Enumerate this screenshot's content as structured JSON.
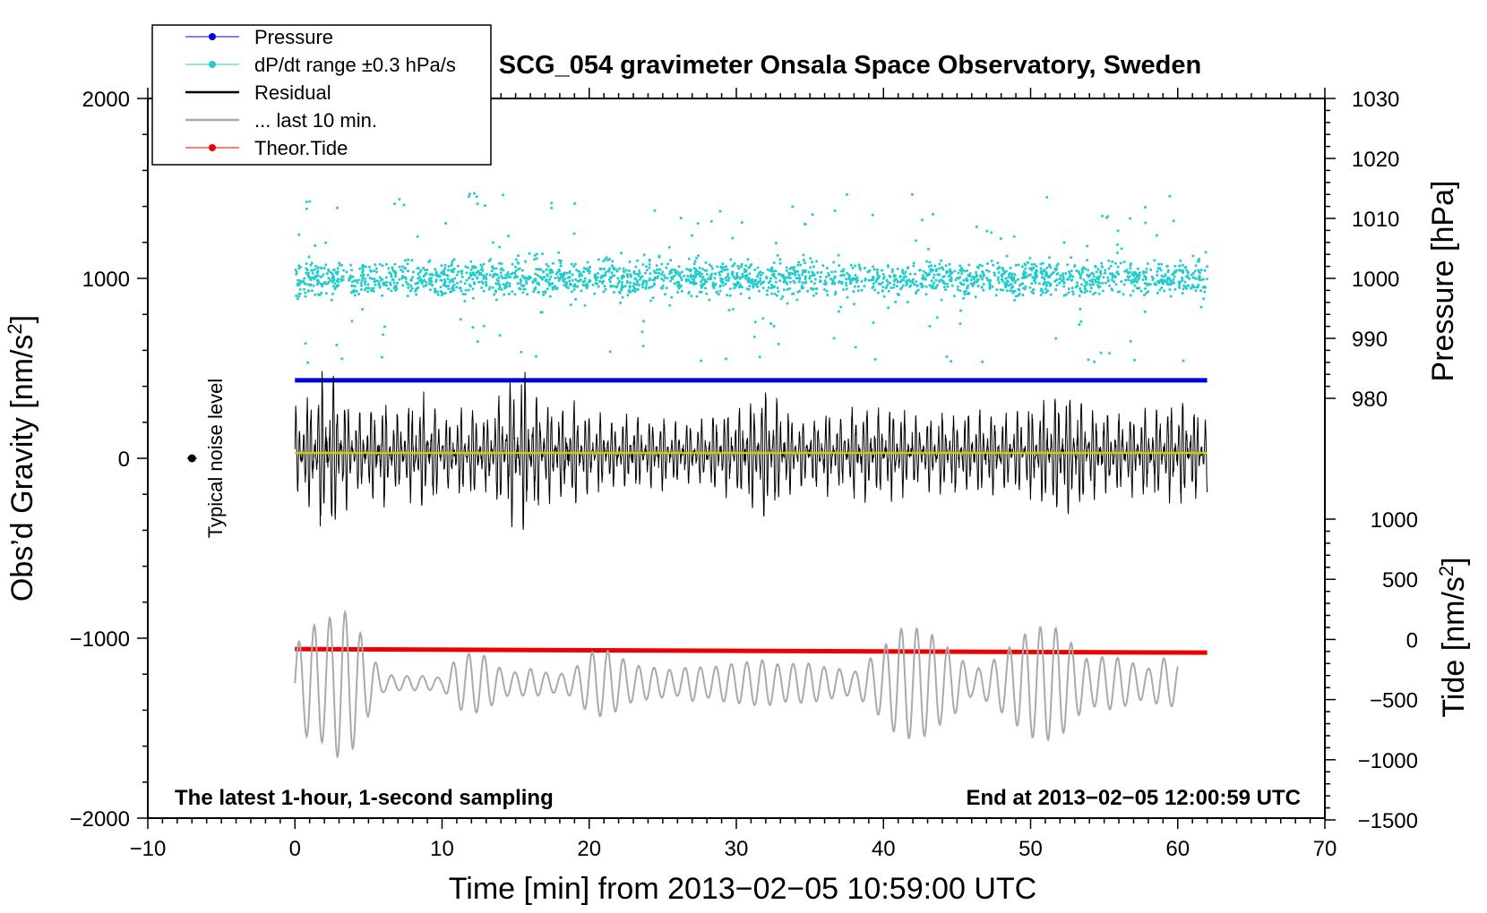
{
  "chart_data": {
    "type": "line",
    "title": "SCG_054 gravimeter Onsala Space Observatory, Sweden",
    "xlabel": "Time [min] from 2013−02−05 10:59:00 UTC",
    "ylabel_left": "Obs’d Gravity [nm/s²]",
    "ylabel_right_top": "Pressure [hPa]",
    "ylabel_right_bottom": "Tide [nm/s²]",
    "xlim": [
      -10,
      70
    ],
    "ylim_left": [
      -2000,
      2000
    ],
    "xticks": [
      "−10",
      "0",
      "10",
      "20",
      "30",
      "40",
      "50",
      "60",
      "70"
    ],
    "yticks_left": [
      "2000",
      "1000",
      "0",
      "−1000",
      "−2000"
    ],
    "yticks_pressure": [
      "1030",
      "1020",
      "1010",
      "1000",
      "990",
      "980"
    ],
    "yticks_tide": [
      "1000",
      "500",
      "0",
      "−500",
      "−1000",
      "−1500"
    ],
    "annotation_left": "The latest 1-hour, 1-second sampling",
    "annotation_right": "End at 2013−02−05 12:00:59 UTC",
    "noise_label": "Typical noise level",
    "noise_marker": {
      "x": -7,
      "y": 0
    },
    "legend": [
      {
        "label": "Pressure",
        "color": "#0000dd",
        "marker": "dot"
      },
      {
        "label": "dP/dt range ±0.3 hPa/s",
        "color": "#22cccc",
        "marker": "dot"
      },
      {
        "label": "Residual",
        "color": "#000000",
        "marker": "line"
      },
      {
        "label": "... last 10 min.",
        "color": "#aaaaaa",
        "marker": "line"
      },
      {
        "label": "Theor.Tide",
        "color": "#ee0000",
        "marker": "dot"
      }
    ],
    "series": [
      {
        "name": "Pressure",
        "color": "#0000dd",
        "axis": "pressure",
        "x": [
          0,
          62
        ],
        "y": [
          983,
          983
        ]
      },
      {
        "name": "dP/dt range ±0.3 hPa/s",
        "color": "#22cccc",
        "axis": "left",
        "x_range": [
          0,
          62
        ],
        "center": 1000,
        "spread": 300
      },
      {
        "name": "Residual",
        "color": "#000000",
        "axis": "left",
        "x_range": [
          0,
          62
        ],
        "center": 30,
        "envelope": [
          [
            0,
            250
          ],
          [
            1,
            300
          ],
          [
            2,
            450
          ],
          [
            2.5,
            480
          ],
          [
            3,
            380
          ],
          [
            4,
            200
          ],
          [
            5,
            240
          ],
          [
            6,
            300
          ],
          [
            7,
            220
          ],
          [
            8,
            280
          ],
          [
            9,
            300
          ],
          [
            10,
            200
          ],
          [
            11,
            220
          ],
          [
            12,
            260
          ],
          [
            13,
            200
          ],
          [
            14,
            330
          ],
          [
            15,
            420
          ],
          [
            15.5,
            470
          ],
          [
            16,
            320
          ],
          [
            17,
            280
          ],
          [
            18,
            250
          ],
          [
            19,
            280
          ],
          [
            20,
            230
          ],
          [
            21,
            200
          ],
          [
            22,
            180
          ],
          [
            23,
            220
          ],
          [
            24,
            170
          ],
          [
            25,
            200
          ],
          [
            26,
            160
          ],
          [
            27,
            170
          ],
          [
            28,
            180
          ],
          [
            29,
            220
          ],
          [
            30,
            250
          ],
          [
            31,
            290
          ],
          [
            32,
            360
          ],
          [
            33,
            280
          ],
          [
            34,
            200
          ],
          [
            35,
            180
          ],
          [
            36,
            230
          ],
          [
            37,
            190
          ],
          [
            38,
            240
          ],
          [
            39,
            260
          ],
          [
            40,
            230
          ],
          [
            41,
            270
          ],
          [
            42,
            200
          ],
          [
            43,
            190
          ],
          [
            44,
            220
          ],
          [
            45,
            210
          ],
          [
            46,
            240
          ],
          [
            47,
            230
          ],
          [
            48,
            200
          ],
          [
            49,
            230
          ],
          [
            50,
            250
          ],
          [
            51,
            280
          ],
          [
            52,
            350
          ],
          [
            53,
            330
          ],
          [
            54,
            260
          ],
          [
            55,
            230
          ],
          [
            56,
            210
          ],
          [
            57,
            220
          ],
          [
            58,
            240
          ],
          [
            59,
            250
          ],
          [
            60,
            280
          ],
          [
            61,
            250
          ],
          [
            62,
            220
          ]
        ]
      },
      {
        "name": "Residual mean",
        "color": "#cccc00",
        "axis": "left",
        "x": [
          0,
          62
        ],
        "y": [
          30,
          30
        ]
      },
      {
        "name": "Theor.Tide",
        "color": "#ee0000",
        "axis": "tide",
        "x": [
          0,
          62
        ],
        "y": [
          -80,
          -110
        ]
      },
      {
        "name": "... last 10 min.",
        "color": "#aaaaaa",
        "axis": "left",
        "x_range": [
          0,
          60
        ],
        "center": -1250,
        "envelope": [
          [
            0,
            200
          ],
          [
            1,
            320
          ],
          [
            2,
            330
          ],
          [
            3,
            420
          ],
          [
            4,
            360
          ],
          [
            5,
            180
          ],
          [
            6,
            50
          ],
          [
            7,
            40
          ],
          [
            8,
            40
          ],
          [
            9,
            40
          ],
          [
            10,
            30
          ],
          [
            11,
            140
          ],
          [
            12,
            170
          ],
          [
            13,
            150
          ],
          [
            14,
            80
          ],
          [
            15,
            60
          ],
          [
            16,
            80
          ],
          [
            17,
            60
          ],
          [
            18,
            50
          ],
          [
            19,
            80
          ],
          [
            20,
            170
          ],
          [
            21,
            190
          ],
          [
            22,
            150
          ],
          [
            23,
            100
          ],
          [
            24,
            90
          ],
          [
            25,
            80
          ],
          [
            26,
            70
          ],
          [
            27,
            100
          ],
          [
            28,
            80
          ],
          [
            29,
            100
          ],
          [
            30,
            110
          ],
          [
            31,
            120
          ],
          [
            32,
            130
          ],
          [
            33,
            100
          ],
          [
            34,
            110
          ],
          [
            35,
            110
          ],
          [
            36,
            90
          ],
          [
            37,
            80
          ],
          [
            38,
            60
          ],
          [
            39,
            130
          ],
          [
            40,
            200
          ],
          [
            41,
            300
          ],
          [
            42,
            310
          ],
          [
            43,
            290
          ],
          [
            44,
            220
          ],
          [
            45,
            160
          ],
          [
            46,
            70
          ],
          [
            47,
            100
          ],
          [
            48,
            160
          ],
          [
            49,
            230
          ],
          [
            50,
            300
          ],
          [
            51,
            320
          ],
          [
            52,
            300
          ],
          [
            53,
            200
          ],
          [
            54,
            120
          ],
          [
            55,
            150
          ],
          [
            56,
            140
          ],
          [
            57,
            110
          ],
          [
            58,
            80
          ],
          [
            59,
            140
          ],
          [
            60,
            120
          ]
        ]
      }
    ]
  }
}
